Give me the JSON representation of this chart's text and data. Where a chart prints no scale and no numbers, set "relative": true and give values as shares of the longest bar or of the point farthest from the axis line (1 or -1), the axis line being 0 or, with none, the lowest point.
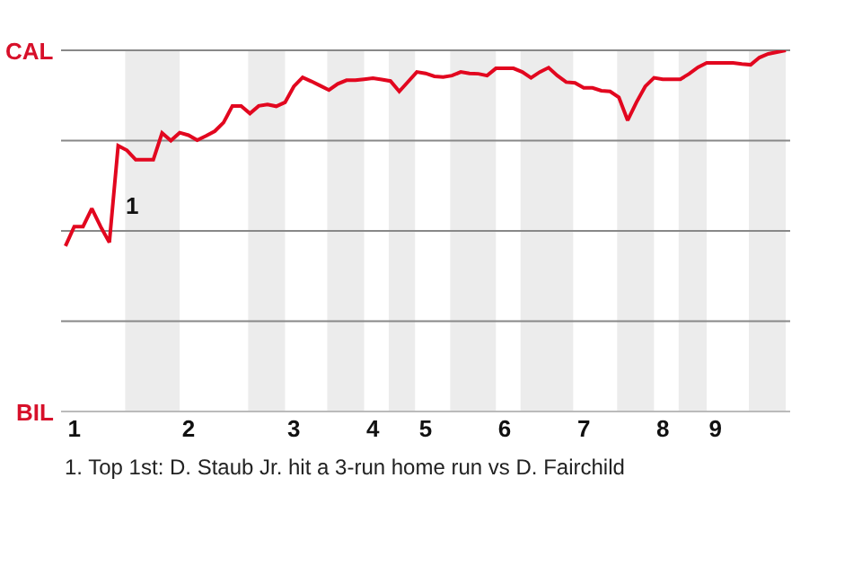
{
  "chart_data": {
    "type": "line",
    "relative": true,
    "categories": [
      null,
      "1",
      null,
      null,
      null,
      null,
      null,
      null,
      null,
      null,
      null,
      null,
      null,
      null,
      "2",
      null,
      null,
      null,
      null,
      null,
      null,
      null,
      null,
      null,
      null,
      null,
      "3",
      null,
      null,
      null,
      null,
      null,
      null,
      null,
      null,
      "4",
      null,
      null,
      null,
      null,
      null,
      "5",
      null,
      null,
      null,
      null,
      null,
      null,
      null,
      null,
      "6",
      null,
      null,
      null,
      null,
      null,
      null,
      null,
      null,
      "7",
      null,
      null,
      null,
      null,
      null,
      null,
      null,
      null,
      "8",
      null,
      null,
      null,
      null,
      null,
      "9",
      null,
      null,
      null,
      null,
      null,
      null,
      null,
      null
    ],
    "series": [
      {
        "color": "#e2071f",
        "values": [
          0.458,
          0.512,
          0.512,
          0.562,
          0.512,
          0.468,
          0.736,
          0.723,
          0.697,
          0.697,
          0.697,
          0.771,
          0.75,
          0.772,
          0.765,
          0.751,
          0.763,
          0.776,
          0.8,
          0.846,
          0.846,
          0.825,
          0.846,
          0.85,
          0.845,
          0.856,
          0.9,
          0.925,
          0.914,
          0.902,
          0.89,
          0.907,
          0.917,
          0.917,
          0.92,
          0.923,
          0.919,
          0.915,
          0.886,
          0.913,
          0.94,
          0.936,
          0.928,
          0.926,
          0.93,
          0.94,
          0.936,
          0.935,
          0.93,
          0.95,
          0.95,
          0.95,
          0.94,
          0.924,
          0.94,
          0.952,
          0.93,
          0.912,
          0.91,
          0.896,
          0.896,
          0.888,
          0.886,
          0.87,
          0.806,
          0.856,
          0.9,
          0.924,
          0.92,
          0.92,
          0.92,
          0.935,
          0.953,
          0.965,
          0.965,
          0.965,
          0.965,
          0.962,
          0.96,
          0.98,
          0.99,
          0.995,
          1.0
        ]
      }
    ],
    "marker": "none",
    "line_style": "solid",
    "grid": "y",
    "annotations": [
      "CAL",
      "BIL",
      "1",
      "1. Top 1st: D. Staub Jr. hit a 3-run home run vs D. Fairchild"
    ]
  }
}
